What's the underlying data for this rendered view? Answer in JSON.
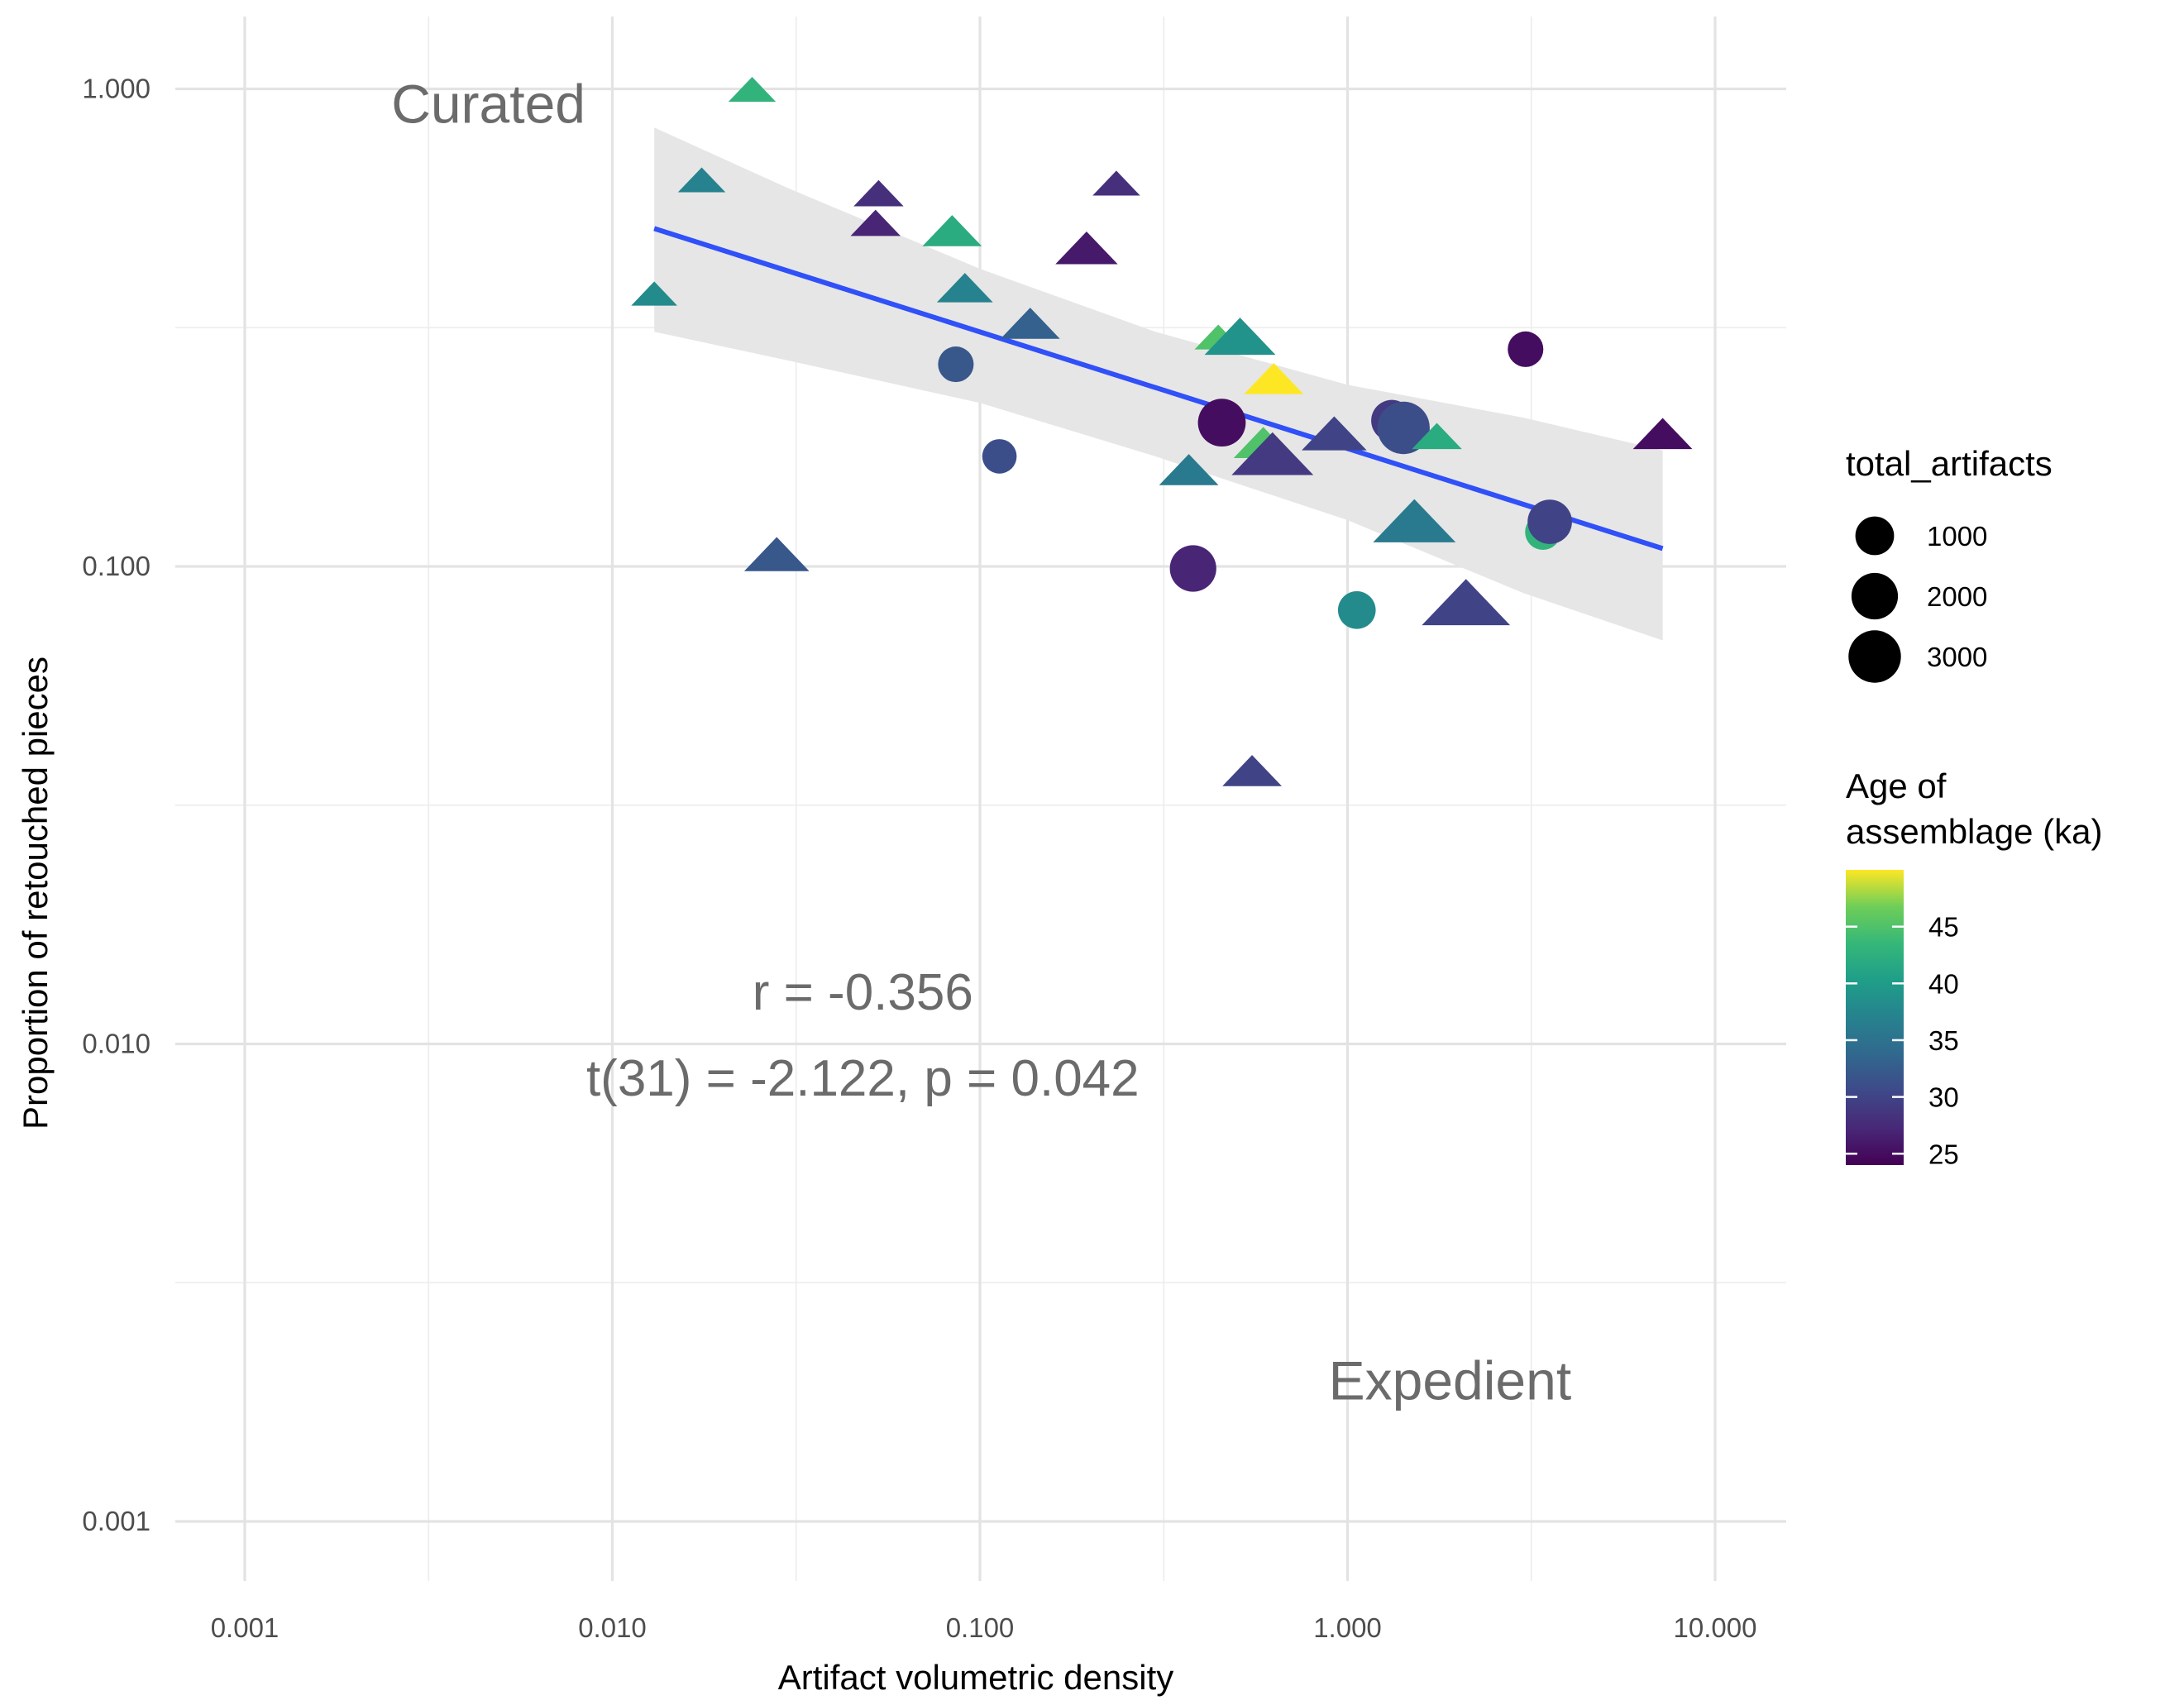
{
  "chart_data": {
    "type": "scatter",
    "xlabel": "Artifact volumetric density",
    "ylabel": "Proportion of retouched pieces",
    "x_scale": "log10",
    "y_scale": "log10",
    "xlim": [
      0.001,
      10
    ],
    "ylim": [
      0.001,
      1
    ],
    "x_ticks": [
      {
        "value": 0.001,
        "label": "0.001"
      },
      {
        "value": 0.01,
        "label": "0.010"
      },
      {
        "value": 0.1,
        "label": "0.100"
      },
      {
        "value": 1,
        "label": "1.000"
      },
      {
        "value": 10,
        "label": "10.000"
      }
    ],
    "y_ticks": [
      {
        "value": 0.001,
        "label": "0.001"
      },
      {
        "value": 0.01,
        "label": "0.010"
      },
      {
        "value": 0.1,
        "label": "0.100"
      },
      {
        "value": 1,
        "label": "1.000"
      }
    ],
    "grid": true,
    "annotations": [
      {
        "text": "Curated",
        "x": 0.0046,
        "y": 0.85
      },
      {
        "text": "Expedient",
        "x": 1.9,
        "y": 0.0018
      },
      {
        "text": "r = -0.356",
        "x": 0.048,
        "y": 0.0118
      },
      {
        "text": "t(31) =  -2.122, p = 0.042",
        "x": 0.048,
        "y": 0.0078
      }
    ],
    "trend_line": {
      "color": "#3050f8",
      "x": [
        0.013,
        7.2
      ],
      "y": [
        0.51,
        0.109
      ],
      "band_x": [
        0.013,
        0.03,
        0.1,
        0.3,
        1,
        3,
        7.2
      ],
      "band_upper": [
        0.83,
        0.62,
        0.42,
        0.31,
        0.24,
        0.205,
        0.175
      ],
      "band_lower": [
        0.31,
        0.27,
        0.22,
        0.17,
        0.125,
        0.088,
        0.07
      ]
    },
    "points": [
      {
        "x": 0.024,
        "y": 0.99,
        "shape": "triangle",
        "size": 300,
        "age": 43
      },
      {
        "x": 0.0175,
        "y": 0.64,
        "shape": "triangle",
        "size": 300,
        "age": 37
      },
      {
        "x": 0.013,
        "y": 0.37,
        "shape": "triangle",
        "size": 250,
        "age": 38
      },
      {
        "x": 0.053,
        "y": 0.6,
        "shape": "triangle",
        "size": 400,
        "age": 28
      },
      {
        "x": 0.052,
        "y": 0.52,
        "shape": "triangle",
        "size": 400,
        "age": 27
      },
      {
        "x": 0.084,
        "y": 0.5,
        "shape": "triangle",
        "size": 900,
        "age": 42
      },
      {
        "x": 0.091,
        "y": 0.38,
        "shape": "triangle",
        "size": 700,
        "age": 37
      },
      {
        "x": 0.235,
        "y": 0.63,
        "shape": "triangle",
        "size": 300,
        "age": 28
      },
      {
        "x": 0.195,
        "y": 0.46,
        "shape": "triangle",
        "size": 1100,
        "age": 26
      },
      {
        "x": 0.137,
        "y": 0.32,
        "shape": "triangle",
        "size": 900,
        "age": 33
      },
      {
        "x": 0.086,
        "y": 0.265,
        "shape": "circle",
        "size": 700,
        "age": 32
      },
      {
        "x": 0.113,
        "y": 0.17,
        "shape": "circle",
        "size": 600,
        "age": 31
      },
      {
        "x": 0.028,
        "y": 0.105,
        "shape": "triangle",
        "size": 1300,
        "age": 32
      },
      {
        "x": 0.445,
        "y": 0.3,
        "shape": "triangle",
        "size": 300,
        "age": 45
      },
      {
        "x": 0.51,
        "y": 0.3,
        "shape": "triangle",
        "size": 1800,
        "age": 39
      },
      {
        "x": 0.63,
        "y": 0.245,
        "shape": "triangle",
        "size": 900,
        "age": 50
      },
      {
        "x": 0.455,
        "y": 0.2,
        "shape": "circle",
        "size": 2200,
        "age": 25
      },
      {
        "x": 0.59,
        "y": 0.18,
        "shape": "triangle",
        "size": 900,
        "age": 45
      },
      {
        "x": 0.625,
        "y": 0.17,
        "shape": "triangle",
        "size": 2900,
        "age": 29
      },
      {
        "x": 0.37,
        "y": 0.158,
        "shape": "triangle",
        "size": 900,
        "age": 36
      },
      {
        "x": 0.92,
        "y": 0.188,
        "shape": "triangle",
        "size": 1300,
        "age": 30
      },
      {
        "x": 1.32,
        "y": 0.202,
        "shape": "circle",
        "size": 1300,
        "age": 29
      },
      {
        "x": 1.42,
        "y": 0.195,
        "shape": "circle",
        "size": 3000,
        "age": 31
      },
      {
        "x": 1.75,
        "y": 0.186,
        "shape": "triangle",
        "size": 400,
        "age": 42
      },
      {
        "x": 3.05,
        "y": 0.285,
        "shape": "circle",
        "size": 700,
        "age": 25
      },
      {
        "x": 7.2,
        "y": 0.188,
        "shape": "triangle",
        "size": 900,
        "age": 25
      },
      {
        "x": 1.52,
        "y": 0.123,
        "shape": "triangle",
        "size": 3000,
        "age": 36
      },
      {
        "x": 3.4,
        "y": 0.118,
        "shape": "circle",
        "size": 700,
        "age": 43
      },
      {
        "x": 3.55,
        "y": 0.124,
        "shape": "circle",
        "size": 1700,
        "age": 30
      },
      {
        "x": 0.38,
        "y": 0.099,
        "shape": "circle",
        "size": 2000,
        "age": 27
      },
      {
        "x": 1.06,
        "y": 0.081,
        "shape": "circle",
        "size": 900,
        "age": 38
      },
      {
        "x": 2.1,
        "y": 0.083,
        "shape": "triangle",
        "size": 3700,
        "age": 30
      },
      {
        "x": 0.55,
        "y": 0.037,
        "shape": "triangle",
        "size": 900,
        "age": 30
      }
    ],
    "legend_size": {
      "title": "total_artifacts",
      "placement": "right",
      "entries": [
        {
          "label": "1000",
          "size": 1000
        },
        {
          "label": "2000",
          "size": 2000
        },
        {
          "label": "3000",
          "size": 3000
        }
      ]
    },
    "legend_color": {
      "title_lines": [
        "Age of",
        "assemblage (ka)"
      ],
      "placement": "right",
      "colormap": "viridis",
      "range": [
        24,
        50
      ],
      "ticks": [
        {
          "value": 25,
          "label": "25"
        },
        {
          "value": 30,
          "label": "30"
        },
        {
          "value": 35,
          "label": "35"
        },
        {
          "value": 40,
          "label": "40"
        },
        {
          "value": 45,
          "label": "45"
        }
      ]
    }
  }
}
